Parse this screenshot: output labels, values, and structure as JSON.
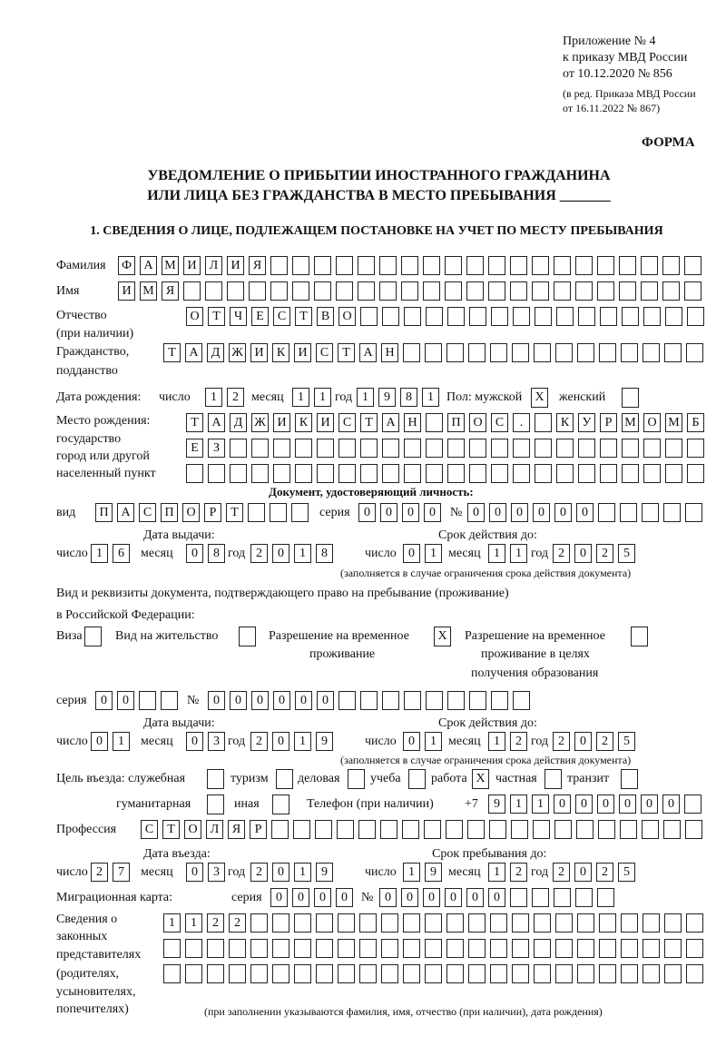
{
  "header": {
    "appendix": "Приложение № 4",
    "order_ref": "к приказу МВД России",
    "order_date": "от 10.12.2020 № 856",
    "edition_1": "(в ред. Приказа МВД России",
    "edition_2": "от 16.11.2022 № 867)",
    "form_label": "ФОРМА"
  },
  "title": {
    "line1": "УВЕДОМЛЕНИЕ О ПРИБЫТИИ ИНОСТРАННОГО ГРАЖДАНИНА",
    "line2": "ИЛИ ЛИЦА БЕЗ ГРАЖДАНСТВА В МЕСТО ПРЕБЫВАНИЯ _______",
    "section1": "1. СВЕДЕНИЯ О ЛИЦЕ, ПОДЛЕЖАЩЕМ ПОСТАНОВКЕ НА УЧЕТ ПО МЕСТУ ПРЕБЫВАНИЯ"
  },
  "labels": {
    "surname": "Фамилия",
    "name": "Имя",
    "patronymic": "Отчество",
    "patronymic_note": "(при наличии)",
    "citizenship": "Гражданство,",
    "citizenship_2": "подданство",
    "birth_date": "Дата рождения:",
    "day": "число",
    "month": "месяц",
    "year": "год",
    "sex": "Пол: мужской",
    "female": "женский",
    "birth_place": "Место рождения:",
    "birth_place_2": "государство",
    "birth_place_3": "город или другой",
    "birth_place_4": "населенный пункт",
    "id_doc": "Документ, удостоверяющий личность:",
    "kind": "вид",
    "series": "серия",
    "number": "№",
    "issue_date": "Дата выдачи:",
    "valid_until": "Срок действия до:",
    "valid_note": "(заполняется в случае ограничения срока действия документа)",
    "stay_doc_1": "Вид и реквизиты документа, подтверждающего право на пребывание (проживание)",
    "stay_doc_2": "в Российской Федерации:",
    "visa": "Виза",
    "residence": "Вид на жительство",
    "temp_1": "Разрешение на временное",
    "temp_2": "проживание",
    "temp_edu_1": "Разрешение на временное",
    "temp_edu_2": "проживание в целях",
    "temp_edu_3": "получения образования",
    "purpose": "Цель въезда: служебная",
    "tourism": "туризм",
    "business": "деловая",
    "study": "учеба",
    "work": "работа",
    "private": "частная",
    "transit": "транзит",
    "humanitarian": "гуманитарная",
    "other": "иная",
    "phone": "Телефон (при наличии)",
    "phone_prefix": "+7",
    "profession": "Профессия",
    "entry_date": "Дата въезда:",
    "stay_until": "Срок пребывания до:",
    "migration_card": "Миграционная карта:",
    "rep_1": "Сведения о",
    "rep_2": "законных",
    "rep_3": "представителях",
    "rep_4": "(родителях,",
    "rep_5": "усыновителях,",
    "rep_6": "попечителях)",
    "rep_note": "(при заполнении указываются фамилия, имя, отчество (при наличии), дата рождения)"
  },
  "person": {
    "surname": [
      "Ф",
      "А",
      "М",
      "И",
      "Л",
      "И",
      "Я",
      "",
      "",
      "",
      "",
      "",
      "",
      "",
      "",
      "",
      "",
      "",
      "",
      "",
      "",
      "",
      "",
      "",
      "",
      "",
      ""
    ],
    "name": [
      "И",
      "М",
      "Я",
      "",
      "",
      "",
      "",
      "",
      "",
      "",
      "",
      "",
      "",
      "",
      "",
      "",
      "",
      "",
      "",
      "",
      "",
      "",
      "",
      "",
      "",
      "",
      ""
    ],
    "patronymic": [
      "О",
      "Т",
      "Ч",
      "Е",
      "С",
      "Т",
      "В",
      "О",
      "",
      "",
      "",
      "",
      "",
      "",
      "",
      "",
      "",
      "",
      "",
      "",
      "",
      "",
      "",
      ""
    ],
    "citizenship": [
      "Т",
      "А",
      "Д",
      "Ж",
      "И",
      "К",
      "И",
      "С",
      "Т",
      "А",
      "Н",
      "",
      "",
      "",
      "",
      "",
      "",
      "",
      "",
      "",
      "",
      "",
      "",
      "",
      ""
    ],
    "birth_day": [
      "1",
      "2"
    ],
    "birth_month": [
      "1",
      "1"
    ],
    "birth_year": [
      "1",
      "9",
      "8",
      "1"
    ],
    "sex_male": "X",
    "sex_female": "",
    "birth_place_1": [
      "Т",
      "А",
      "Д",
      "Ж",
      "И",
      "К",
      "И",
      "С",
      "Т",
      "А",
      "Н",
      "",
      "П",
      "О",
      "С",
      ".",
      "",
      "К",
      "У",
      "Р",
      "М",
      "О",
      "М",
      "Б"
    ],
    "birth_place_2": [
      "Е",
      "З",
      "",
      "",
      "",
      "",
      "",
      "",
      "",
      "",
      "",
      "",
      "",
      "",
      "",
      "",
      "",
      "",
      "",
      "",
      "",
      "",
      "",
      ""
    ],
    "birth_place_3": [
      "",
      "",
      "",
      "",
      "",
      "",
      "",
      "",
      "",
      "",
      "",
      "",
      "",
      "",
      "",
      "",
      "",
      "",
      "",
      "",
      "",
      "",
      "",
      ""
    ]
  },
  "id_document": {
    "kind": [
      "П",
      "А",
      "С",
      "П",
      "О",
      "Р",
      "Т",
      "",
      "",
      ""
    ],
    "series": [
      "0",
      "0",
      "0",
      "0"
    ],
    "number": [
      "0",
      "0",
      "0",
      "0",
      "0",
      "0",
      "",
      "",
      "",
      "",
      ""
    ],
    "issue_day": [
      "1",
      "6"
    ],
    "issue_month": [
      "0",
      "8"
    ],
    "issue_year": [
      "2",
      "0",
      "1",
      "8"
    ],
    "valid_day": [
      "0",
      "1"
    ],
    "valid_month": [
      "1",
      "1"
    ],
    "valid_year": [
      "2",
      "0",
      "2",
      "5"
    ]
  },
  "stay_document": {
    "visa": "",
    "residence_permit": "",
    "temporary_residence": "X",
    "temporary_residence_education": "",
    "series": [
      "0",
      "0",
      "",
      ""
    ],
    "number": [
      "0",
      "0",
      "0",
      "0",
      "0",
      "0",
      "",
      "",
      "",
      "",
      "",
      "",
      "",
      "",
      ""
    ],
    "issue_day": [
      "0",
      "1"
    ],
    "issue_month": [
      "0",
      "3"
    ],
    "issue_year": [
      "2",
      "0",
      "1",
      "9"
    ],
    "valid_day": [
      "0",
      "1"
    ],
    "valid_month": [
      "1",
      "2"
    ],
    "valid_year": [
      "2",
      "0",
      "2",
      "5"
    ]
  },
  "purpose": {
    "official": "",
    "tourism": "",
    "business": "",
    "study": "",
    "work": "X",
    "private": "",
    "transit": "",
    "humanitarian": "",
    "other": ""
  },
  "phone": [
    "9",
    "1",
    "1",
    "0",
    "0",
    "0",
    "0",
    "0",
    "0",
    ""
  ],
  "profession": [
    "С",
    "Т",
    "О",
    "Л",
    "Я",
    "Р",
    "",
    "",
    "",
    "",
    "",
    "",
    "",
    "",
    "",
    "",
    "",
    "",
    "",
    "",
    "",
    "",
    "",
    "",
    "",
    ""
  ],
  "entry": {
    "entry_day": [
      "2",
      "7"
    ],
    "entry_month": [
      "0",
      "3"
    ],
    "entry_year": [
      "2",
      "0",
      "1",
      "9"
    ],
    "stay_day": [
      "1",
      "9"
    ],
    "stay_month": [
      "1",
      "2"
    ],
    "stay_year": [
      "2",
      "0",
      "2",
      "5"
    ]
  },
  "migration_card": {
    "series": [
      "0",
      "0",
      "0",
      "0"
    ],
    "number": [
      "0",
      "0",
      "0",
      "0",
      "0",
      "0",
      "",
      "",
      "",
      "",
      ""
    ]
  },
  "representatives": {
    "row1": [
      "1",
      "1",
      "2",
      "2",
      "",
      "",
      "",
      "",
      "",
      "",
      "",
      "",
      "",
      "",
      "",
      "",
      "",
      "",
      "",
      "",
      "",
      "",
      "",
      "",
      ""
    ],
    "row2": [
      "",
      "",
      "",
      "",
      "",
      "",
      "",
      "",
      "",
      "",
      "",
      "",
      "",
      "",
      "",
      "",
      "",
      "",
      "",
      "",
      "",
      "",
      "",
      "",
      ""
    ],
    "row3": [
      "",
      "",
      "",
      "",
      "",
      "",
      "",
      "",
      "",
      "",
      "",
      "",
      "",
      "",
      "",
      "",
      "",
      "",
      "",
      "",
      "",
      "",
      "",
      "",
      ""
    ]
  }
}
